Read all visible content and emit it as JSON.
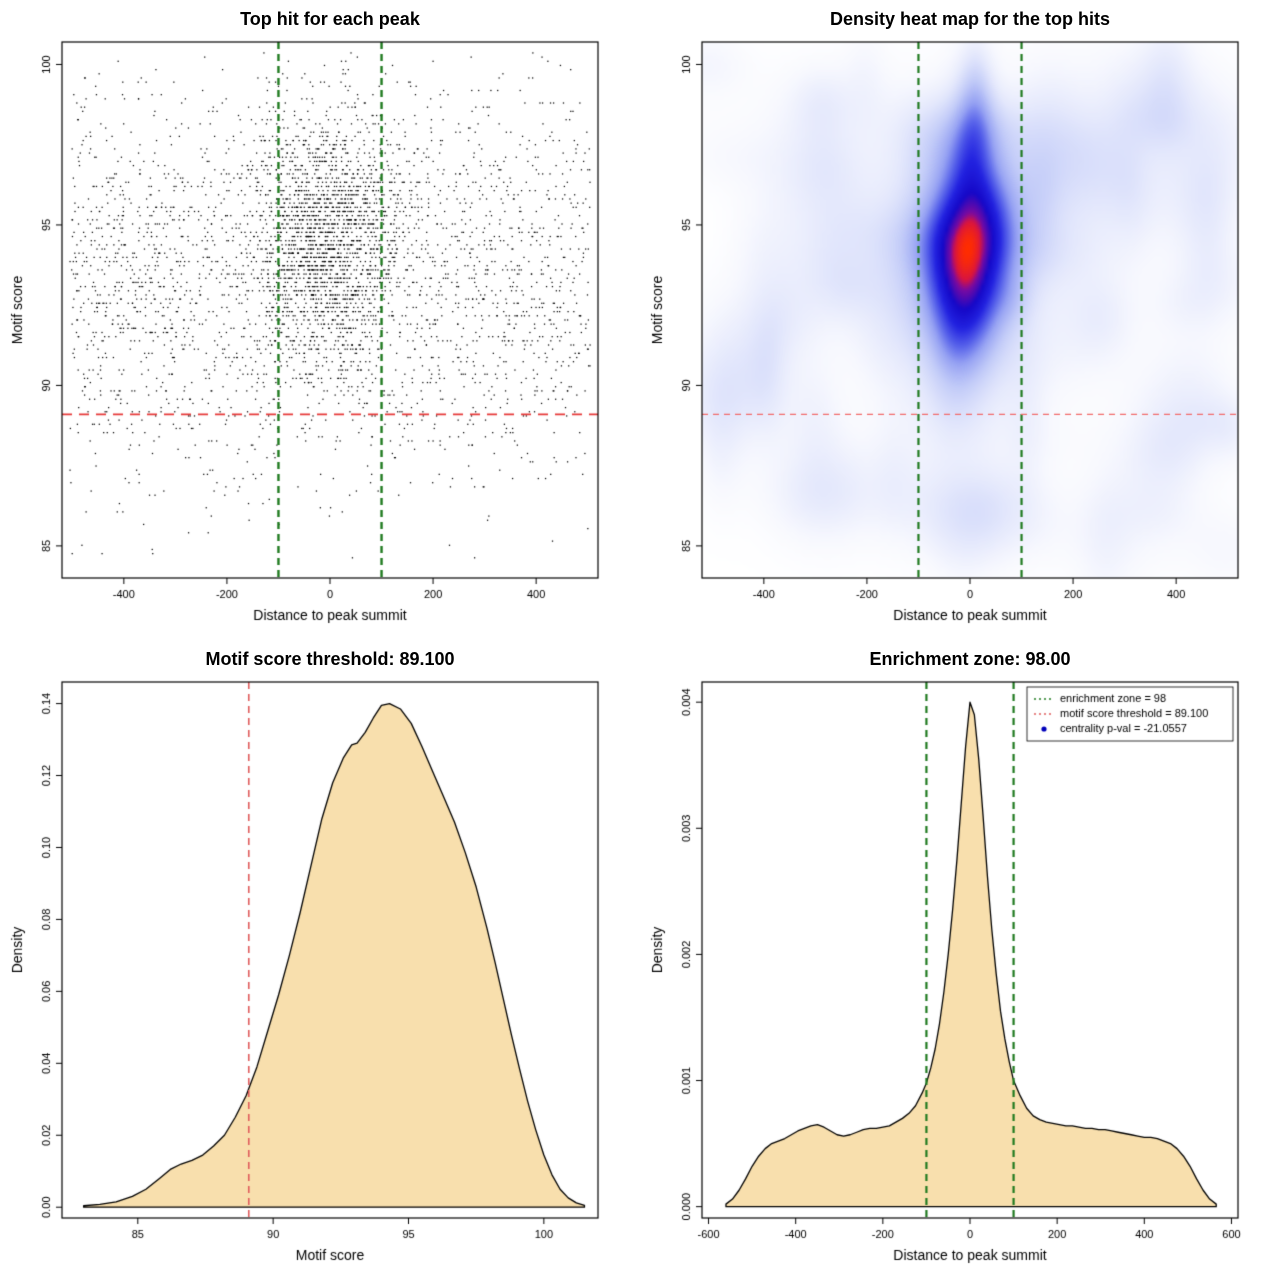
{
  "figure_background": "#ffffff",
  "chart_data": [
    {
      "type": "scatter",
      "title": "Top hit for each peak",
      "xlabel": "Distance to peak summit",
      "ylabel": "Motif score",
      "xlim": [
        -520,
        520
      ],
      "ylim": [
        84.0,
        100.7
      ],
      "xticks": {
        "values": [
          -400,
          -200,
          0,
          200,
          400
        ],
        "labels": [
          "-400",
          "-200",
          "0",
          "200",
          "400"
        ]
      },
      "yticks": {
        "values": [
          85,
          90,
          95,
          100
        ],
        "labels": [
          "85",
          "90",
          "95",
          "100"
        ]
      },
      "point_color": "#000000",
      "seed": 1337,
      "distribution": {
        "background": {
          "n": 2600,
          "x_min": -505,
          "x_max": 505,
          "y_mean": 93.4,
          "y_sd": 3.2
        },
        "cluster": {
          "n": 1750,
          "x_mean": -5,
          "x_sd": 72,
          "y_mean": 94.6,
          "y_sd": 2.0
        },
        "y_quantum": 0.13
      },
      "vlines": {
        "x": [
          -100,
          100
        ],
        "color": "#1f7a1f",
        "dash": [
          7,
          5
        ],
        "width": 2.4
      },
      "hline": {
        "y": 89.1,
        "color": "#e63939",
        "dash": [
          10,
          7
        ],
        "width": 1.8
      }
    },
    {
      "type": "heatmap",
      "title": "Density heat map for the top hits",
      "xlabel": "Distance to peak summit",
      "ylabel": "Motif score",
      "xlim": [
        -520,
        520
      ],
      "ylim": [
        84.0,
        100.7
      ],
      "xticks": {
        "values": [
          -400,
          -200,
          0,
          200,
          400
        ],
        "labels": [
          "-400",
          "-200",
          "0",
          "200",
          "400"
        ]
      },
      "yticks": {
        "values": [
          85,
          90,
          95,
          100
        ],
        "labels": [
          "85",
          "90",
          "95",
          "100"
        ]
      },
      "colormap": [
        [
          0,
          "#ffffff"
        ],
        [
          0.05,
          "#f7f8fe"
        ],
        [
          0.13,
          "#e4e8fc"
        ],
        [
          0.25,
          "#c2cbf8"
        ],
        [
          0.38,
          "#96a2f3"
        ],
        [
          0.5,
          "#5560ea"
        ],
        [
          0.62,
          "#2222e0"
        ],
        [
          0.75,
          "#1508c8"
        ],
        [
          0.87,
          "#7a0aa0"
        ],
        [
          0.92,
          "#d81440"
        ],
        [
          1,
          "#ff2d00"
        ]
      ],
      "kernels": [
        {
          "a": 1.0,
          "x": -5,
          "y": 94.4,
          "sx": 55,
          "sy": 2.0
        },
        {
          "a": 0.4,
          "x": 5,
          "y": 97.3,
          "sx": 30,
          "sy": 1.7
        },
        {
          "a": 0.45,
          "x": -12,
          "y": 92.7,
          "sx": 42,
          "sy": 1.5
        },
        {
          "a": 0.22,
          "x": 12,
          "y": 99.0,
          "sx": 22,
          "sy": 1.2
        },
        {
          "a": 0.3,
          "x": 0,
          "y": 94.3,
          "sx": 115,
          "sy": 3.0
        }
      ],
      "noise": {
        "seed": 777,
        "count": 95,
        "amp": [
          0.04,
          0.12
        ],
        "sx": [
          25,
          85
        ],
        "sy": [
          0.55,
          1.7
        ],
        "y_min": 84.8,
        "y_max": 100.2
      },
      "vlines": {
        "x": [
          -100,
          100
        ],
        "color": "#1f7a1f",
        "dash": [
          7,
          5
        ],
        "width": 2.2
      },
      "hline": {
        "y": 89.1,
        "color": "#f26a6a",
        "dash": [
          6,
          5
        ],
        "width": 1.3
      }
    },
    {
      "type": "area",
      "title": "Motif score threshold: 89.100",
      "xlabel": "Motif score",
      "ylabel": "Density",
      "xlim": [
        82.2,
        102.0
      ],
      "ylim": [
        -0.003,
        0.146
      ],
      "xticks": {
        "values": [
          85,
          90,
          95,
          100
        ],
        "labels": [
          "85",
          "90",
          "95",
          "100"
        ]
      },
      "yticks": {
        "values": [
          0,
          0.02,
          0.04,
          0.06,
          0.08,
          0.1,
          0.12,
          0.14
        ],
        "labels": [
          "0.00",
          "0.02",
          "0.04",
          "0.06",
          "0.08",
          "0.10",
          "0.12",
          "0.14"
        ]
      },
      "fill": "#f8dfad",
      "stroke": "#000000",
      "vlines": {
        "x": [
          89.1
        ],
        "color": "#e05c5c",
        "dash": [
          7,
          5
        ],
        "width": 1.6
      },
      "points": [
        [
          83,
          0.0004
        ],
        [
          83.6,
          0.0008
        ],
        [
          84.2,
          0.0015
        ],
        [
          84.8,
          0.003
        ],
        [
          85.3,
          0.005
        ],
        [
          85.8,
          0.008
        ],
        [
          86.2,
          0.0105
        ],
        [
          86.6,
          0.012
        ],
        [
          87,
          0.013
        ],
        [
          87.4,
          0.0145
        ],
        [
          87.8,
          0.017
        ],
        [
          88.2,
          0.02
        ],
        [
          88.6,
          0.025
        ],
        [
          89,
          0.031
        ],
        [
          89.4,
          0.039
        ],
        [
          89.8,
          0.049
        ],
        [
          90.2,
          0.059
        ],
        [
          90.6,
          0.07
        ],
        [
          91,
          0.082
        ],
        [
          91.4,
          0.095
        ],
        [
          91.8,
          0.108
        ],
        [
          92.2,
          0.118
        ],
        [
          92.6,
          0.125
        ],
        [
          92.9,
          0.1285
        ],
        [
          93.1,
          0.129
        ],
        [
          93.4,
          0.132
        ],
        [
          93.7,
          0.136
        ],
        [
          94,
          0.1395
        ],
        [
          94.3,
          0.14
        ],
        [
          94.7,
          0.1385
        ],
        [
          95.1,
          0.1345
        ],
        [
          95.5,
          0.128
        ],
        [
          95.9,
          0.121
        ],
        [
          96.3,
          0.114
        ],
        [
          96.7,
          0.107
        ],
        [
          97.1,
          0.0985
        ],
        [
          97.5,
          0.089
        ],
        [
          97.9,
          0.0775
        ],
        [
          98.2,
          0.068
        ],
        [
          98.5,
          0.058
        ],
        [
          98.8,
          0.048
        ],
        [
          99.1,
          0.0385
        ],
        [
          99.4,
          0.0295
        ],
        [
          99.7,
          0.0215
        ],
        [
          100,
          0.0145
        ],
        [
          100.3,
          0.009
        ],
        [
          100.6,
          0.005
        ],
        [
          100.9,
          0.0026
        ],
        [
          101.2,
          0.0012
        ],
        [
          101.5,
          0.0005
        ]
      ]
    },
    {
      "type": "area",
      "title": "Enrichment zone: 98.00",
      "xlabel": "Distance to peak summit",
      "ylabel": "Density",
      "xlim": [
        -615,
        615
      ],
      "ylim": [
        -9e-05,
        0.00416
      ],
      "xticks": {
        "values": [
          -600,
          -400,
          -200,
          0,
          200,
          400,
          600
        ],
        "labels": [
          "-600",
          "-400",
          "-200",
          "0",
          "200",
          "400",
          "600"
        ]
      },
      "yticks": {
        "values": [
          0,
          0.001,
          0.002,
          0.003,
          0.004
        ],
        "labels": [
          "0.000",
          "0.001",
          "0.002",
          "0.003",
          "0.004"
        ]
      },
      "fill": "#f8dfad",
      "stroke": "#000000",
      "vlines": {
        "x": [
          -100,
          100
        ],
        "color": "#1f7a1f",
        "dash": [
          7,
          5
        ],
        "width": 2.2
      },
      "legend": {
        "items": [
          {
            "label": "enrichment zone = 98",
            "color": "#1f7a1f",
            "marker": "dotted-line"
          },
          {
            "label": "motif score threshold = 89.100",
            "color": "#e05c5c",
            "marker": "dotted-line"
          },
          {
            "label": "centrality p-val = -21.0557",
            "color": "#0000bb",
            "marker": "dot"
          }
        ]
      },
      "points": [
        [
          -560,
          2e-05
        ],
        [
          -545,
          6e-05
        ],
        [
          -530,
          0.00013
        ],
        [
          -515,
          0.00022
        ],
        [
          -500,
          0.00032
        ],
        [
          -485,
          0.0004
        ],
        [
          -470,
          0.00046
        ],
        [
          -455,
          0.0005
        ],
        [
          -440,
          0.00052
        ],
        [
          -425,
          0.00054
        ],
        [
          -410,
          0.00057
        ],
        [
          -395,
          0.0006
        ],
        [
          -380,
          0.00062
        ],
        [
          -365,
          0.00064
        ],
        [
          -350,
          0.00065
        ],
        [
          -335,
          0.00063
        ],
        [
          -320,
          0.0006
        ],
        [
          -305,
          0.00057
        ],
        [
          -290,
          0.00056
        ],
        [
          -275,
          0.00057
        ],
        [
          -260,
          0.00059
        ],
        [
          -245,
          0.00061
        ],
        [
          -230,
          0.00062
        ],
        [
          -215,
          0.00062
        ],
        [
          -200,
          0.00063
        ],
        [
          -185,
          0.00064
        ],
        [
          -170,
          0.00067
        ],
        [
          -155,
          0.0007
        ],
        [
          -140,
          0.00074
        ],
        [
          -125,
          0.0008
        ],
        [
          -110,
          0.0009
        ],
        [
          -100,
          0.00098
        ],
        [
          -90,
          0.0011
        ],
        [
          -80,
          0.00125
        ],
        [
          -70,
          0.00145
        ],
        [
          -60,
          0.0017
        ],
        [
          -50,
          0.002
        ],
        [
          -40,
          0.00235
        ],
        [
          -30,
          0.00275
        ],
        [
          -20,
          0.0032
        ],
        [
          -10,
          0.00365
        ],
        [
          0,
          0.004
        ],
        [
          10,
          0.0039
        ],
        [
          20,
          0.00355
        ],
        [
          30,
          0.0031
        ],
        [
          40,
          0.00262
        ],
        [
          50,
          0.0022
        ],
        [
          60,
          0.00185
        ],
        [
          70,
          0.00155
        ],
        [
          80,
          0.00133
        ],
        [
          90,
          0.00115
        ],
        [
          100,
          0.001
        ],
        [
          115,
          0.00088
        ],
        [
          130,
          0.00078
        ],
        [
          145,
          0.00072
        ],
        [
          160,
          0.00069
        ],
        [
          175,
          0.00067
        ],
        [
          190,
          0.00066
        ],
        [
          205,
          0.00065
        ],
        [
          220,
          0.00064
        ],
        [
          235,
          0.00064
        ],
        [
          250,
          0.00063
        ],
        [
          265,
          0.00062
        ],
        [
          280,
          0.00062
        ],
        [
          295,
          0.00061
        ],
        [
          310,
          0.00061
        ],
        [
          325,
          0.0006
        ],
        [
          340,
          0.00059
        ],
        [
          355,
          0.00058
        ],
        [
          370,
          0.00057
        ],
        [
          385,
          0.00056
        ],
        [
          400,
          0.00055
        ],
        [
          415,
          0.00055
        ],
        [
          430,
          0.00054
        ],
        [
          445,
          0.00052
        ],
        [
          460,
          0.0005
        ],
        [
          475,
          0.00046
        ],
        [
          490,
          0.0004
        ],
        [
          505,
          0.00032
        ],
        [
          520,
          0.00022
        ],
        [
          535,
          0.00013
        ],
        [
          550,
          6e-05
        ],
        [
          565,
          2e-05
        ]
      ]
    }
  ]
}
